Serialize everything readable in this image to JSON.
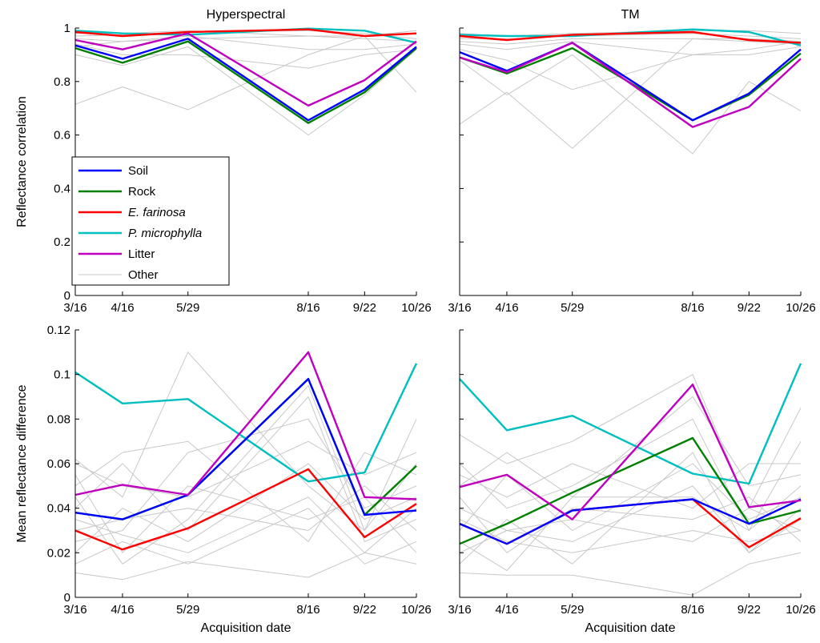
{
  "chart_data": {
    "type": "line",
    "x_dates": [
      "3/16",
      "4/16",
      "5/29",
      "8/16",
      "9/22",
      "10/26"
    ],
    "x_days": [
      0,
      31,
      74,
      153,
      190,
      224
    ],
    "legend": [
      {
        "key": "soil",
        "label": "Soil",
        "italic": false
      },
      {
        "key": "rock",
        "label": "Rock",
        "italic": false
      },
      {
        "key": "efarinosa",
        "label": "E. farinosa",
        "italic": true
      },
      {
        "key": "pmicrophylla",
        "label": "P. microphylla",
        "italic": true
      },
      {
        "key": "litter",
        "label": "Litter",
        "italic": false
      },
      {
        "key": "other",
        "label": "Other",
        "italic": false
      }
    ],
    "colors": {
      "soil": "#0000ff",
      "rock": "#008000",
      "efarinosa": "#ff0000",
      "pmicrophylla": "#00bfbf",
      "litter": "#bf00bf",
      "other": "#c8c8c8"
    },
    "panels": [
      {
        "id": "top-left",
        "title": "Hyperspectral",
        "xlabel": "",
        "ylabel": "Reflectance correlation",
        "ylim": [
          0,
          1
        ],
        "yticks": [
          "0",
          "0.2",
          "0.4",
          "0.6",
          "0.8",
          "1"
        ],
        "ytick_values": [
          0,
          0.2,
          0.4,
          0.6,
          0.8,
          1
        ],
        "series": {
          "soil": [
            0.935,
            0.885,
            0.96,
            0.655,
            0.77,
            0.93
          ],
          "rock": [
            0.925,
            0.87,
            0.95,
            0.645,
            0.76,
            0.925
          ],
          "efarinosa": [
            0.985,
            0.97,
            0.985,
            0.995,
            0.97,
            0.98
          ],
          "pmicrophylla": [
            0.99,
            0.98,
            0.975,
            0.998,
            0.99,
            0.945
          ],
          "litter": [
            0.955,
            0.92,
            0.98,
            0.71,
            0.805,
            0.95
          ],
          "other": [
            [
              0.715,
              0.78,
              0.695,
              0.9,
              0.97,
              0.76
            ],
            [
              0.9,
              0.86,
              0.93,
              0.6,
              0.75,
              0.92
            ],
            [
              0.96,
              0.95,
              0.97,
              0.92,
              0.92,
              0.94
            ],
            [
              0.97,
              0.975,
              0.985,
              0.99,
              0.98,
              0.96
            ],
            [
              0.94,
              0.9,
              0.9,
              0.85,
              0.9,
              0.92
            ],
            [
              0.98,
              0.98,
              0.99,
              0.97,
              0.97,
              0.99
            ],
            [
              0.93,
              0.95,
              0.96,
              0.97,
              0.96,
              0.95
            ]
          ]
        }
      },
      {
        "id": "top-right",
        "title": "TM",
        "xlabel": "",
        "ylabel": "",
        "ylim": [
          0,
          1
        ],
        "yticks": [],
        "ytick_values": [
          0,
          0.2,
          0.4,
          0.6,
          0.8,
          1
        ],
        "series": {
          "soil": [
            0.91,
            0.84,
            0.945,
            0.655,
            0.755,
            0.92
          ],
          "rock": [
            0.89,
            0.83,
            0.925,
            0.655,
            0.75,
            0.905
          ],
          "efarinosa": [
            0.97,
            0.955,
            0.975,
            0.985,
            0.955,
            0.945
          ],
          "pmicrophylla": [
            0.975,
            0.97,
            0.97,
            0.995,
            0.985,
            0.935
          ],
          "litter": [
            0.89,
            0.835,
            0.945,
            0.63,
            0.705,
            0.885
          ],
          "other": [
            [
              0.64,
              0.76,
              0.55,
              0.96,
              0.96,
              0.95
            ],
            [
              0.88,
              0.75,
              0.9,
              0.53,
              0.8,
              0.69
            ],
            [
              0.94,
              0.92,
              0.95,
              0.9,
              0.9,
              0.93
            ],
            [
              0.96,
              0.96,
              0.97,
              0.98,
              0.97,
              0.96
            ],
            [
              0.98,
              0.97,
              0.98,
              0.99,
              0.99,
              0.98
            ],
            [
              0.92,
              0.88,
              0.77,
              0.9,
              0.92,
              0.95
            ],
            [
              0.95,
              0.94,
              0.96,
              0.96,
              0.95,
              0.94
            ]
          ]
        }
      },
      {
        "id": "bottom-left",
        "title": "",
        "xlabel": "Acquisition date",
        "ylabel": "Mean reflectance difference",
        "ylim": [
          0,
          0.12
        ],
        "yticks": [
          "0",
          "0.02",
          "0.04",
          "0.06",
          "0.08",
          "0.1",
          "0.12"
        ],
        "ytick_values": [
          0,
          0.02,
          0.04,
          0.06,
          0.08,
          0.1,
          0.12
        ],
        "series": {
          "soil": [
            0.038,
            0.035,
            0.046,
            0.098,
            0.037,
            0.039
          ],
          "rock": [
            0.038,
            0.035,
            0.046,
            0.098,
            0.037,
            0.059
          ],
          "efarinosa": [
            0.03,
            0.0215,
            0.031,
            0.0575,
            0.027,
            0.042
          ],
          "pmicrophylla": [
            0.101,
            0.087,
            0.089,
            0.052,
            0.056,
            0.105
          ],
          "litter": [
            0.046,
            0.0505,
            0.046,
            0.11,
            0.045,
            0.044
          ],
          "other": [
            [
              0.062,
              0.045,
              0.11,
              0.05,
              0.03,
              0.06
            ],
            [
              0.011,
              0.008,
              0.016,
              0.009,
              0.02,
              0.015
            ],
            [
              0.025,
              0.03,
              0.065,
              0.08,
              0.04,
              0.05
            ],
            [
              0.04,
              0.06,
              0.03,
              0.09,
              0.025,
              0.035
            ],
            [
              0.055,
              0.02,
              0.05,
              0.035,
              0.045,
              0.02
            ],
            [
              0.02,
              0.04,
              0.025,
              0.06,
              0.035,
              0.045
            ],
            [
              0.03,
              0.035,
              0.04,
              0.03,
              0.05,
              0.03
            ],
            [
              0.06,
              0.05,
              0.045,
              0.07,
              0.055,
              0.065
            ],
            [
              0.015,
              0.025,
              0.015,
              0.04,
              0.015,
              0.025
            ],
            [
              0.035,
              0.028,
              0.02,
              0.045,
              0.02,
              0.04
            ],
            [
              0.05,
              0.065,
              0.07,
              0.025,
              0.065,
              0.055
            ],
            [
              0.045,
              0.015,
              0.035,
              0.095,
              0.03,
              0.08
            ]
          ]
        }
      },
      {
        "id": "bottom-right",
        "title": "",
        "xlabel": "Acquisition date",
        "ylabel": "",
        "ylim": [
          0,
          0.12
        ],
        "yticks": [],
        "ytick_values": [
          0,
          0.02,
          0.04,
          0.06,
          0.08,
          0.1,
          0.12
        ],
        "series": {
          "soil": [
            0.033,
            0.024,
            0.039,
            0.044,
            0.033,
            0.044
          ],
          "rock": [
            0.024,
            0.033,
            0.047,
            0.0715,
            0.033,
            0.039
          ],
          "efarinosa": [
            0.033,
            0.024,
            0.039,
            0.044,
            0.0225,
            0.0355
          ],
          "pmicrophylla": [
            0.098,
            0.075,
            0.0815,
            0.0555,
            0.051,
            0.105
          ],
          "litter": [
            0.0495,
            0.055,
            0.035,
            0.0955,
            0.0405,
            0.0435
          ],
          "other": [
            [
              0.073,
              0.06,
              0.07,
              0.1,
              0.04,
              0.085
            ],
            [
              0.011,
              0.01,
              0.01,
              0.001,
              0.015,
              0.02
            ],
            [
              0.06,
              0.04,
              0.05,
              0.08,
              0.03,
              0.05
            ],
            [
              0.03,
              0.055,
              0.03,
              0.06,
              0.035,
              0.045
            ],
            [
              0.045,
              0.02,
              0.04,
              0.035,
              0.045,
              0.025
            ],
            [
              0.02,
              0.03,
              0.025,
              0.05,
              0.02,
              0.035
            ],
            [
              0.055,
              0.045,
              0.06,
              0.04,
              0.06,
              0.06
            ],
            [
              0.035,
              0.025,
              0.02,
              0.03,
              0.025,
              0.03
            ],
            [
              0.015,
              0.035,
              0.015,
              0.065,
              0.02,
              0.04
            ],
            [
              0.05,
              0.065,
              0.045,
              0.09,
              0.05,
              0.055
            ],
            [
              0.04,
              0.03,
              0.035,
              0.025,
              0.04,
              0.03
            ],
            [
              0.025,
              0.012,
              0.045,
              0.045,
              0.03,
              0.07
            ]
          ]
        }
      }
    ]
  }
}
